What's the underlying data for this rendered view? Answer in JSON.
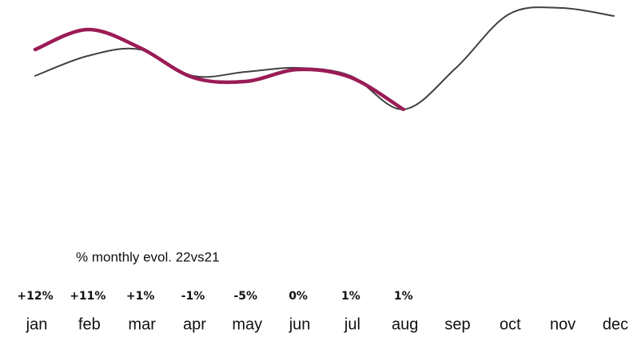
{
  "chart_data": {
    "type": "line",
    "categories": [
      "jan",
      "feb",
      "mar",
      "apr",
      "may",
      "jun",
      "jul",
      "aug",
      "sep",
      "oct",
      "nov",
      "dec"
    ],
    "series": [
      {
        "color": "#404040",
        "values": [
          52.5,
          65,
          69,
          52.5,
          55,
          57.5,
          52.5,
          31.5,
          57.5,
          91,
          95,
          90
        ]
      },
      {
        "color": "#9b1b56",
        "values": [
          69,
          81.5,
          70,
          51.5,
          49,
          56.5,
          51.5,
          31.5,
          null,
          null,
          null,
          null
        ]
      }
    ],
    "ylim": [
      0,
      100
    ],
    "evolution": {
      "label": "% monthly evol. 22vs21",
      "values": [
        12,
        11,
        1,
        -1,
        -5,
        0,
        1,
        1
      ],
      "value_labels": [
        "+12%",
        "+11%",
        "+1%",
        "-1%",
        "-5%",
        "0%",
        "1%",
        "1%"
      ]
    }
  }
}
